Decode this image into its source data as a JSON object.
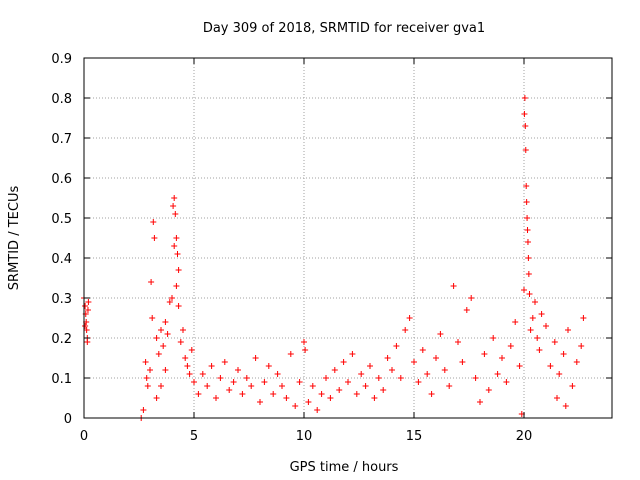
{
  "chart_data": {
    "type": "scatter",
    "title": "Day 309 of 2018, SRMTID for receiver gva1",
    "xlabel": "GPS time / hours",
    "ylabel": "SRMTID / TECUs",
    "xlim": [
      0,
      24
    ],
    "ylim": [
      0,
      0.9
    ],
    "xticks": [
      0,
      5,
      10,
      15,
      20
    ],
    "xtick_labels": [
      "0",
      "5",
      "10",
      "15",
      "20"
    ],
    "yticks": [
      0,
      0.1,
      0.2,
      0.3,
      0.4,
      0.5,
      0.6,
      0.7,
      0.8,
      0.9
    ],
    "ytick_labels": [
      "0",
      "0.1",
      "0.2",
      "0.3",
      "0.4",
      "0.5",
      "0.6",
      "0.7",
      "0.8",
      "0.9"
    ],
    "grid": true,
    "marker": "+",
    "color": "#ff0000",
    "series": [
      {
        "name": "SRMTID",
        "points": [
          [
            0.0,
            0.3
          ],
          [
            0.05,
            0.28
          ],
          [
            0.08,
            0.26
          ],
          [
            0.1,
            0.24
          ],
          [
            0.12,
            0.22
          ],
          [
            0.15,
            0.2
          ],
          [
            0.18,
            0.27
          ],
          [
            0.2,
            0.29
          ],
          [
            0.05,
            0.23
          ],
          [
            0.15,
            0.19
          ],
          [
            2.6,
            0.0
          ],
          [
            2.7,
            0.02
          ],
          [
            2.8,
            0.14
          ],
          [
            2.85,
            0.1
          ],
          [
            2.9,
            0.08
          ],
          [
            3.0,
            0.12
          ],
          [
            3.05,
            0.34
          ],
          [
            3.1,
            0.25
          ],
          [
            3.15,
            0.49
          ],
          [
            3.2,
            0.45
          ],
          [
            3.3,
            0.2
          ],
          [
            3.4,
            0.16
          ],
          [
            3.5,
            0.22
          ],
          [
            3.6,
            0.18
          ],
          [
            3.7,
            0.24
          ],
          [
            3.8,
            0.21
          ],
          [
            3.9,
            0.29
          ],
          [
            4.0,
            0.3
          ],
          [
            4.05,
            0.53
          ],
          [
            4.1,
            0.55
          ],
          [
            4.15,
            0.51
          ],
          [
            4.2,
            0.45
          ],
          [
            4.25,
            0.41
          ],
          [
            4.3,
            0.37
          ],
          [
            4.1,
            0.43
          ],
          [
            4.2,
            0.33
          ],
          [
            4.3,
            0.28
          ],
          [
            4.4,
            0.19
          ],
          [
            4.5,
            0.22
          ],
          [
            4.6,
            0.15
          ],
          [
            4.7,
            0.13
          ],
          [
            4.8,
            0.11
          ],
          [
            4.9,
            0.17
          ],
          [
            3.3,
            0.05
          ],
          [
            3.5,
            0.08
          ],
          [
            3.7,
            0.12
          ],
          [
            5.0,
            0.09
          ],
          [
            5.2,
            0.06
          ],
          [
            5.4,
            0.11
          ],
          [
            5.6,
            0.08
          ],
          [
            5.8,
            0.13
          ],
          [
            6.0,
            0.05
          ],
          [
            6.2,
            0.1
          ],
          [
            6.4,
            0.14
          ],
          [
            6.6,
            0.07
          ],
          [
            6.8,
            0.09
          ],
          [
            7.0,
            0.12
          ],
          [
            7.2,
            0.06
          ],
          [
            7.4,
            0.1
          ],
          [
            7.6,
            0.08
          ],
          [
            7.8,
            0.15
          ],
          [
            8.0,
            0.04
          ],
          [
            8.2,
            0.09
          ],
          [
            8.4,
            0.13
          ],
          [
            8.6,
            0.06
          ],
          [
            8.8,
            0.11
          ],
          [
            9.0,
            0.08
          ],
          [
            9.2,
            0.05
          ],
          [
            9.4,
            0.16
          ],
          [
            9.6,
            0.03
          ],
          [
            9.8,
            0.09
          ],
          [
            10.0,
            0.19
          ],
          [
            10.05,
            0.17
          ],
          [
            10.2,
            0.04
          ],
          [
            10.4,
            0.08
          ],
          [
            10.6,
            0.02
          ],
          [
            10.8,
            0.06
          ],
          [
            11.0,
            0.1
          ],
          [
            11.2,
            0.05
          ],
          [
            11.4,
            0.12
          ],
          [
            11.6,
            0.07
          ],
          [
            11.8,
            0.14
          ],
          [
            12.0,
            0.09
          ],
          [
            12.2,
            0.16
          ],
          [
            12.4,
            0.06
          ],
          [
            12.6,
            0.11
          ],
          [
            12.8,
            0.08
          ],
          [
            13.0,
            0.13
          ],
          [
            13.2,
            0.05
          ],
          [
            13.4,
            0.1
          ],
          [
            13.6,
            0.07
          ],
          [
            13.8,
            0.15
          ],
          [
            14.0,
            0.12
          ],
          [
            14.2,
            0.18
          ],
          [
            14.4,
            0.1
          ],
          [
            14.6,
            0.22
          ],
          [
            14.8,
            0.25
          ],
          [
            15.0,
            0.14
          ],
          [
            15.2,
            0.09
          ],
          [
            15.4,
            0.17
          ],
          [
            15.6,
            0.11
          ],
          [
            15.8,
            0.06
          ],
          [
            16.0,
            0.15
          ],
          [
            16.2,
            0.21
          ],
          [
            16.4,
            0.12
          ],
          [
            16.6,
            0.08
          ],
          [
            16.8,
            0.33
          ],
          [
            17.0,
            0.19
          ],
          [
            17.2,
            0.14
          ],
          [
            17.4,
            0.27
          ],
          [
            17.6,
            0.3
          ],
          [
            17.8,
            0.1
          ],
          [
            18.0,
            0.04
          ],
          [
            18.2,
            0.16
          ],
          [
            18.4,
            0.07
          ],
          [
            18.6,
            0.2
          ],
          [
            18.8,
            0.11
          ],
          [
            19.0,
            0.15
          ],
          [
            19.2,
            0.09
          ],
          [
            19.4,
            0.18
          ],
          [
            19.6,
            0.24
          ],
          [
            19.8,
            0.13
          ],
          [
            19.9,
            0.01
          ],
          [
            20.0,
            0.32
          ],
          [
            20.02,
            0.76
          ],
          [
            20.04,
            0.8
          ],
          [
            20.06,
            0.73
          ],
          [
            20.08,
            0.67
          ],
          [
            20.1,
            0.58
          ],
          [
            20.12,
            0.54
          ],
          [
            20.14,
            0.5
          ],
          [
            20.16,
            0.47
          ],
          [
            20.18,
            0.44
          ],
          [
            20.2,
            0.4
          ],
          [
            20.22,
            0.36
          ],
          [
            20.25,
            0.31
          ],
          [
            20.3,
            0.22
          ],
          [
            20.4,
            0.25
          ],
          [
            20.5,
            0.29
          ],
          [
            20.6,
            0.2
          ],
          [
            20.7,
            0.17
          ],
          [
            20.8,
            0.26
          ],
          [
            21.0,
            0.23
          ],
          [
            21.2,
            0.13
          ],
          [
            21.4,
            0.19
          ],
          [
            21.6,
            0.11
          ],
          [
            21.8,
            0.16
          ],
          [
            22.0,
            0.22
          ],
          [
            22.2,
            0.08
          ],
          [
            22.4,
            0.14
          ],
          [
            22.6,
            0.18
          ],
          [
            22.7,
            0.25
          ],
          [
            21.5,
            0.05
          ],
          [
            21.9,
            0.03
          ]
        ]
      }
    ]
  }
}
